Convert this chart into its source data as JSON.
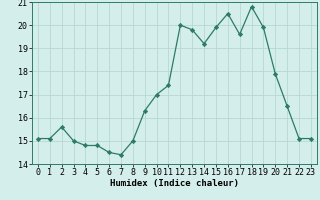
{
  "x": [
    0,
    1,
    2,
    3,
    4,
    5,
    6,
    7,
    8,
    9,
    10,
    11,
    12,
    13,
    14,
    15,
    16,
    17,
    18,
    19,
    20,
    21,
    22,
    23
  ],
  "y": [
    15.1,
    15.1,
    15.6,
    15.0,
    14.8,
    14.8,
    14.5,
    14.4,
    15.0,
    16.3,
    17.0,
    17.4,
    20.0,
    19.8,
    19.2,
    19.9,
    20.5,
    19.6,
    20.8,
    19.9,
    17.9,
    16.5,
    15.1,
    15.1
  ],
  "line_color": "#2d7a6b",
  "marker": "D",
  "marker_size": 2.2,
  "bg_color": "#d4eeeb",
  "grid_color": "#b8d8d4",
  "xlabel": "Humidex (Indice chaleur)",
  "xlim": [
    -0.5,
    23.5
  ],
  "ylim": [
    14,
    21
  ],
  "yticks": [
    14,
    15,
    16,
    17,
    18,
    19,
    20,
    21
  ],
  "xticks": [
    0,
    1,
    2,
    3,
    4,
    5,
    6,
    7,
    8,
    9,
    10,
    11,
    12,
    13,
    14,
    15,
    16,
    17,
    18,
    19,
    20,
    21,
    22,
    23
  ],
  "xlabel_fontsize": 6.5,
  "tick_fontsize": 6.0
}
